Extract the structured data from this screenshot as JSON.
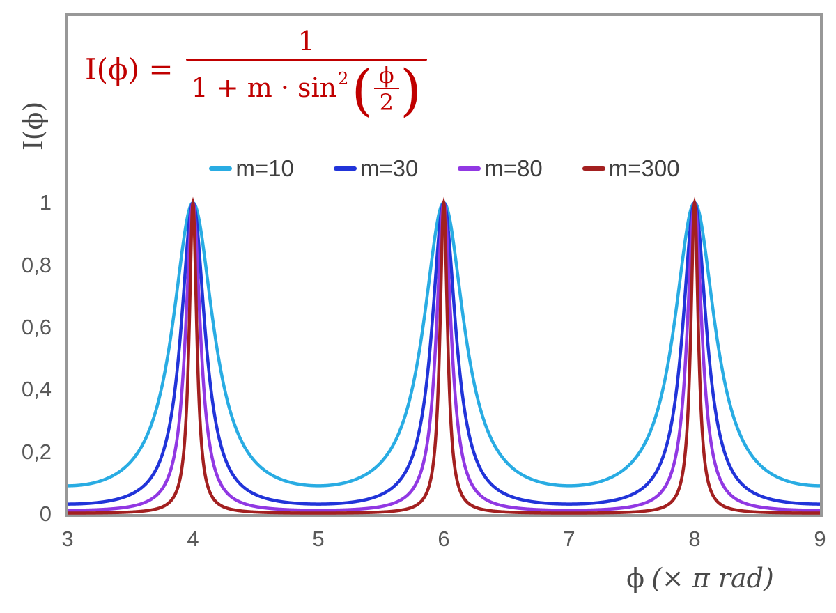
{
  "colors": {
    "frame": "#989898",
    "tick_text": "#595959",
    "legend_text": "#3f3f3f",
    "axis_title": "#4a4a4a",
    "formula": "#C00000",
    "background": "#FFFFFF"
  },
  "formula": {
    "lhs": "I(ϕ) =",
    "numerator": "1",
    "den_text": "1 + m · sin",
    "den_sup": "2",
    "lparen": "(",
    "rparen": ")",
    "inner_num": "ϕ",
    "inner_den": "2"
  },
  "axes": {
    "y_title": "I(ϕ)",
    "x_title_symbol": "ϕ",
    "x_title_unit": "(× π rad)"
  },
  "chart_data": {
    "type": "line",
    "title": "",
    "xlabel": "ϕ (× π rad)",
    "ylabel": "I(ϕ)",
    "function": "I(phi) = 1 / (1 + m * sin(pi*phi/2)^2), phi expressed in units of pi rad",
    "x_axis": {
      "min": 3,
      "max": 9,
      "tick_values": [
        3,
        4,
        5,
        6,
        7,
        8,
        9
      ],
      "tick_labels": [
        "3",
        "4",
        "5",
        "6",
        "7",
        "8",
        "9"
      ]
    },
    "y_axis": {
      "min": 0,
      "max": 1.6,
      "tick_values": [
        0,
        0.2,
        0.4,
        0.6,
        0.8,
        1
      ],
      "tick_labels": [
        "0",
        "0,2",
        "0,4",
        "0,6",
        "0,8",
        "1"
      ]
    },
    "grid": false,
    "legend_position": "top-center",
    "series": [
      {
        "name": "m=10",
        "m": 10,
        "color": "#29ACE3",
        "min_value": 0.0909,
        "max_value": 1
      },
      {
        "name": "m=30",
        "m": 30,
        "color": "#2134D9",
        "min_value": 0.0323,
        "max_value": 1
      },
      {
        "name": "m=80",
        "m": 80,
        "color": "#9138E3",
        "min_value": 0.0123,
        "max_value": 1
      },
      {
        "name": "m=300",
        "m": 300,
        "color": "#A32020",
        "min_value": 0.0033,
        "max_value": 1
      }
    ],
    "peaks": {
      "x": [
        4,
        6,
        8
      ],
      "value": 1
    },
    "minima": {
      "x": [
        3,
        5,
        7,
        9
      ]
    }
  }
}
